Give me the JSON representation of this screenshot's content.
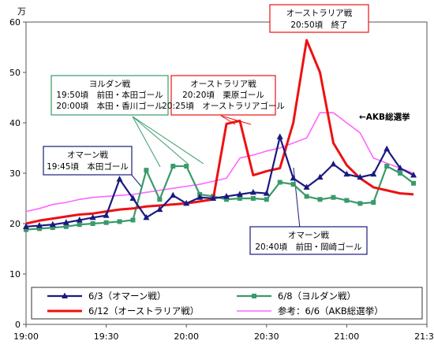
{
  "chart_data": {
    "type": "line",
    "unit_label": "万",
    "ylim": [
      0,
      60
    ],
    "yticks": [
      0,
      10,
      20,
      30,
      40,
      50,
      60
    ],
    "xlim": [
      "19:00",
      "21:30"
    ],
    "xticks": [
      "19:00",
      "19:30",
      "20:00",
      "20:30",
      "21:00",
      "21:30"
    ],
    "grid": false,
    "legend_position": "bottom",
    "series": [
      {
        "name": "6/3（オマーン戦）",
        "color": "#1a1a80",
        "marker": "triangle",
        "points": [
          [
            "19:00",
            19.4
          ],
          [
            "19:05",
            19.6
          ],
          [
            "19:10",
            19.8
          ],
          [
            "19:15",
            20.2
          ],
          [
            "19:20",
            20.7
          ],
          [
            "19:25",
            21.2
          ],
          [
            "19:30",
            21.6
          ],
          [
            "19:35",
            28.8
          ],
          [
            "19:40",
            25.0
          ],
          [
            "19:45",
            21.2
          ],
          [
            "19:50",
            22.8
          ],
          [
            "19:55",
            25.6
          ],
          [
            "20:00",
            24.0
          ],
          [
            "20:05",
            25.2
          ],
          [
            "20:10",
            25.0
          ],
          [
            "20:15",
            25.4
          ],
          [
            "20:20",
            25.8
          ],
          [
            "20:25",
            26.2
          ],
          [
            "20:30",
            26.0
          ],
          [
            "20:35",
            37.2
          ],
          [
            "20:40",
            29.0
          ],
          [
            "20:45",
            27.2
          ],
          [
            "20:50",
            29.2
          ],
          [
            "20:55",
            31.8
          ],
          [
            "21:00",
            29.8
          ],
          [
            "21:05",
            29.2
          ],
          [
            "21:10",
            29.8
          ],
          [
            "21:15",
            34.8
          ],
          [
            "21:20",
            31.0
          ],
          [
            "21:25",
            29.6
          ]
        ]
      },
      {
        "name": "6/8（ヨルダン戦）",
        "color": "#3a9a6a",
        "marker": "square",
        "points": [
          [
            "19:00",
            18.8
          ],
          [
            "19:05",
            19.0
          ],
          [
            "19:10",
            19.2
          ],
          [
            "19:15",
            19.4
          ],
          [
            "19:20",
            19.8
          ],
          [
            "19:25",
            20.0
          ],
          [
            "19:30",
            20.2
          ],
          [
            "19:35",
            20.4
          ],
          [
            "19:40",
            20.7
          ],
          [
            "19:45",
            30.6
          ],
          [
            "19:50",
            24.8
          ],
          [
            "19:55",
            31.4
          ],
          [
            "20:00",
            31.4
          ],
          [
            "20:05",
            25.8
          ],
          [
            "20:10",
            25.4
          ],
          [
            "20:15",
            24.8
          ],
          [
            "20:20",
            25.0
          ],
          [
            "20:25",
            25.0
          ],
          [
            "20:30",
            24.8
          ],
          [
            "20:35",
            28.2
          ],
          [
            "20:40",
            27.8
          ],
          [
            "20:45",
            25.4
          ],
          [
            "20:50",
            24.8
          ],
          [
            "20:55",
            25.2
          ],
          [
            "21:00",
            24.6
          ],
          [
            "21:05",
            24.0
          ],
          [
            "21:10",
            24.2
          ],
          [
            "21:15",
            31.4
          ],
          [
            "21:20",
            30.0
          ],
          [
            "21:25",
            28.0
          ]
        ]
      },
      {
        "name": "6/12（オーストラリア戦）",
        "color": "#ee1111",
        "marker": "none",
        "points": [
          [
            "19:00",
            20.0
          ],
          [
            "19:05",
            20.6
          ],
          [
            "19:10",
            21.0
          ],
          [
            "19:15",
            21.4
          ],
          [
            "19:20",
            21.8
          ],
          [
            "19:25",
            22.0
          ],
          [
            "19:30",
            22.4
          ],
          [
            "19:35",
            22.8
          ],
          [
            "19:40",
            23.0
          ],
          [
            "19:45",
            23.4
          ],
          [
            "19:50",
            23.6
          ],
          [
            "19:55",
            23.8
          ],
          [
            "20:00",
            24.0
          ],
          [
            "20:05",
            24.4
          ],
          [
            "20:10",
            24.8
          ],
          [
            "20:15",
            39.8
          ],
          [
            "20:20",
            40.4
          ],
          [
            "20:25",
            29.6
          ],
          [
            "20:30",
            30.4
          ],
          [
            "20:35",
            31.0
          ],
          [
            "20:40",
            40.0
          ],
          [
            "20:45",
            56.4
          ],
          [
            "20:50",
            50.0
          ],
          [
            "20:55",
            36.0
          ],
          [
            "21:00",
            31.6
          ],
          [
            "21:05",
            29.0
          ],
          [
            "21:10",
            27.2
          ],
          [
            "21:15",
            26.6
          ],
          [
            "21:20",
            26.0
          ],
          [
            "21:25",
            25.8
          ]
        ]
      },
      {
        "name": "参考：6/6（AKB総選挙）",
        "color": "#ff66ff",
        "marker": "none",
        "points": [
          [
            "19:00",
            22.4
          ],
          [
            "19:05",
            23.0
          ],
          [
            "19:10",
            23.8
          ],
          [
            "19:15",
            24.2
          ],
          [
            "19:20",
            24.8
          ],
          [
            "19:25",
            25.2
          ],
          [
            "19:30",
            25.4
          ],
          [
            "19:35",
            25.6
          ],
          [
            "19:40",
            25.8
          ],
          [
            "19:45",
            26.2
          ],
          [
            "19:50",
            26.6
          ],
          [
            "19:55",
            27.0
          ],
          [
            "20:00",
            27.4
          ],
          [
            "20:05",
            27.8
          ],
          [
            "20:10",
            28.4
          ],
          [
            "20:15",
            29.0
          ],
          [
            "20:20",
            33.0
          ],
          [
            "20:25",
            33.6
          ],
          [
            "20:30",
            34.4
          ],
          [
            "20:35",
            35.0
          ],
          [
            "20:40",
            36.0
          ],
          [
            "20:45",
            37.0
          ],
          [
            "20:50",
            42.0
          ],
          [
            "20:55",
            42.0
          ],
          [
            "21:00",
            40.0
          ],
          [
            "21:05",
            38.0
          ],
          [
            "21:10",
            33.0
          ],
          [
            "21:15",
            32.0
          ],
          [
            "21:20",
            31.0
          ],
          [
            "21:25",
            30.0
          ]
        ]
      }
    ],
    "annotations": [
      {
        "id": "australia-end",
        "lines": [
          "オーストラリア戦",
          "20:50頃　終了"
        ],
        "border_color": "#ee1111"
      },
      {
        "id": "jordan-goals",
        "lines": [
          "ヨルダン戦",
          "19:50頃　前田・本田ゴール",
          "20:00頃　本田・香川ゴール"
        ],
        "border_color": "#3a9a6a"
      },
      {
        "id": "australia-goals",
        "lines": [
          "オーストラリア戦",
          "20:20頃　栗原ゴール",
          "20:25頃　オーストラリアゴール"
        ],
        "border_color": "#ee1111"
      },
      {
        "id": "oman-goal-1",
        "lines": [
          "オマーン戦",
          "19:45頃　本田ゴール"
        ],
        "border_color": "#1a1a80"
      },
      {
        "id": "oman-goal-2",
        "lines": [
          "オマーン戦",
          "20:40頃　前田・岡崎ゴール"
        ],
        "border_color": "#1a1a80"
      },
      {
        "id": "akb-label",
        "lines": [
          "←AKB総選挙"
        ],
        "border_color": "none"
      }
    ]
  }
}
